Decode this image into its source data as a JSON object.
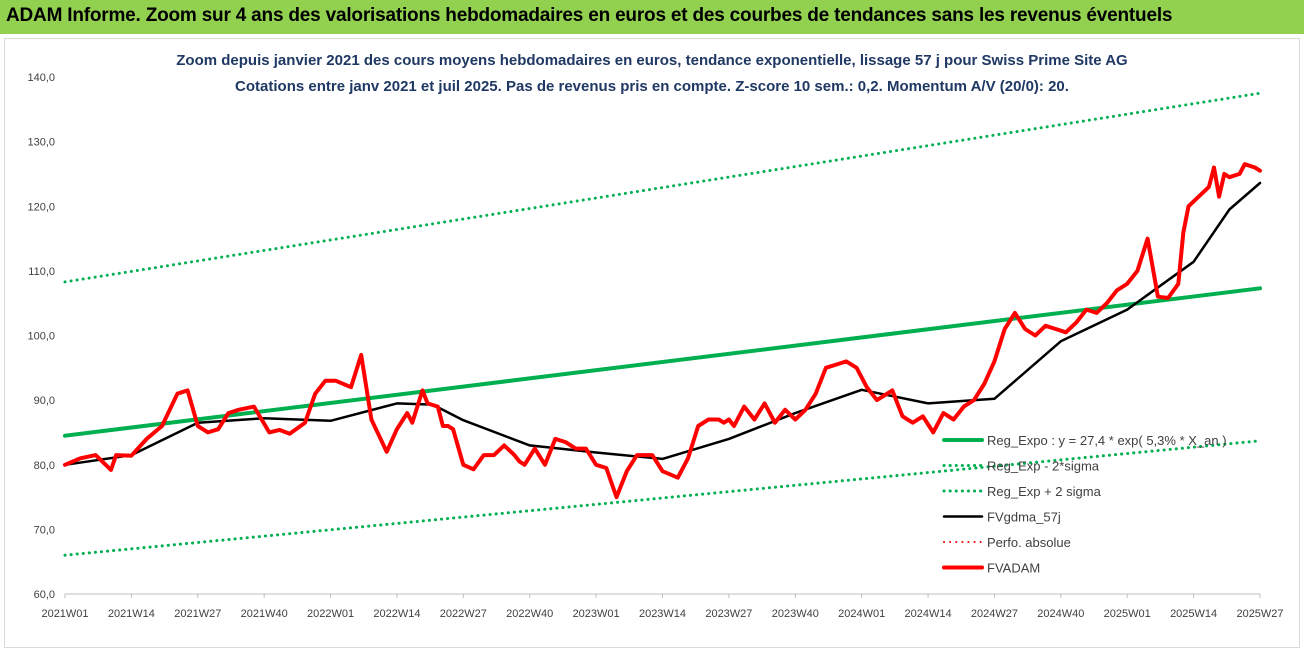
{
  "header": {
    "title": "ADAM Informe. Zoom sur 4 ans des valorisations hebdomadaires en euros et des courbes de tendances sans les revenus éventuels"
  },
  "chart_data": {
    "type": "line",
    "title": "Zoom depuis janvier 2021 des cours moyens hebdomadaires en euros, tendance exponentielle, lissage 57 j pour Swiss Prime Site AG",
    "subtitle": "Cotations entre janv 2021 et juil 2025. Pas de revenus pris en compte. Z-score 10 sem.: 0,2. Momentum A/V (20/0): 20.",
    "x_tick_labels": [
      "2021W01",
      "2021W14",
      "2021W27",
      "2021W40",
      "2022W01",
      "2022W14",
      "2022W27",
      "2022W40",
      "2023W01",
      "2023W14",
      "2023W27",
      "2023W40",
      "2024W01",
      "2024W14",
      "2024W27",
      "2024W40",
      "2025W01",
      "2025W14",
      "2025W27"
    ],
    "y_tick_labels": [
      "60,0",
      "70,0",
      "80,0",
      "90,0",
      "100,0",
      "110,0",
      "120,0",
      "130,0",
      "140,0"
    ],
    "ylim": [
      60,
      140
    ],
    "xlim": [
      0,
      234
    ],
    "grid": false,
    "legend_position": "bottom-right",
    "series": [
      {
        "name": "Reg_Expo : y = 27,4 * exp( 5,3% * X_an )",
        "color": "#00b050",
        "style": "solid",
        "width": 4,
        "x": [
          0,
          234
        ],
        "values": [
          84.5,
          107.3
        ]
      },
      {
        "name": "Reg_Exp - 2*sigma",
        "color": "#00b050",
        "style": "dotted",
        "width": 3,
        "x": [
          0,
          234
        ],
        "values": [
          66.0,
          83.7
        ]
      },
      {
        "name": "Reg_Exp + 2 sigma",
        "color": "#00b050",
        "style": "dotted",
        "width": 3,
        "x": [
          0,
          234
        ],
        "values": [
          108.3,
          137.5
        ]
      },
      {
        "name": "FVgdma_57j",
        "color": "#000000",
        "style": "solid",
        "width": 2.5,
        "x": [
          0,
          13,
          26,
          39,
          52,
          65,
          72,
          78,
          91,
          104,
          117,
          130,
          143,
          156,
          169,
          182,
          195,
          208,
          221,
          228,
          234
        ],
        "values": [
          80.0,
          81.5,
          86.5,
          87.2,
          86.8,
          89.5,
          89.3,
          86.9,
          83.0,
          81.9,
          80.9,
          84.0,
          88.0,
          91.6,
          89.5,
          90.2,
          99.1,
          104.0,
          111.4,
          119.5,
          123.6
        ]
      },
      {
        "name": "Perfo. absolue",
        "color": "#ff0000",
        "style": "dotted",
        "width": 2,
        "x": [],
        "values": []
      },
      {
        "name": "FVADAM",
        "color": "#ff0000",
        "style": "solid",
        "width": 4,
        "x": [
          0,
          3,
          6,
          9,
          10,
          13,
          16,
          19,
          22,
          24,
          26,
          28,
          30,
          32,
          34,
          37,
          40,
          42,
          44,
          47,
          49,
          51,
          53,
          56,
          58,
          60,
          63,
          65,
          67,
          68,
          70,
          71,
          73,
          74,
          75,
          76,
          78,
          80,
          82,
          84,
          86,
          88,
          89,
          90,
          92,
          94,
          96,
          98,
          100,
          102,
          104,
          106,
          108,
          110,
          112,
          115,
          117,
          120,
          122,
          124,
          126,
          128,
          129,
          130,
          131,
          133,
          135,
          137,
          139,
          141,
          143,
          145,
          147,
          149,
          151,
          153,
          155,
          157,
          159,
          162,
          164,
          166,
          168,
          170,
          172,
          174,
          176,
          178,
          180,
          182,
          184,
          186,
          188,
          190,
          192,
          194,
          196,
          198,
          200,
          202,
          204,
          206,
          208,
          210,
          212,
          214,
          216,
          218,
          219,
          220,
          222,
          224,
          225,
          226,
          227,
          228,
          230,
          231,
          233,
          234
        ],
        "values": [
          80.0,
          81.0,
          81.5,
          79.2,
          81.5,
          81.4,
          84.0,
          86.0,
          91.0,
          91.5,
          86.0,
          85.0,
          85.5,
          88.0,
          88.5,
          89.0,
          85.0,
          85.4,
          84.8,
          86.5,
          91.0,
          93.0,
          93.0,
          92.0,
          97.0,
          87.0,
          82.0,
          85.5,
          88.0,
          86.5,
          91.5,
          89.5,
          89.0,
          86.0,
          86.0,
          85.5,
          80.0,
          79.3,
          81.5,
          81.5,
          83.0,
          81.5,
          80.5,
          80.0,
          82.5,
          80.0,
          84.0,
          83.5,
          82.5,
          82.5,
          80.0,
          79.5,
          75.0,
          79.0,
          81.5,
          81.5,
          79.0,
          78.0,
          81.0,
          86.0,
          87.0,
          87.0,
          86.5,
          87.0,
          86.0,
          89.0,
          87.0,
          89.5,
          86.5,
          88.5,
          87.0,
          88.5,
          91.0,
          95.0,
          95.5,
          96.0,
          95.0,
          92.0,
          90.0,
          91.5,
          87.5,
          86.5,
          87.5,
          85.0,
          88.0,
          87.0,
          89.0,
          90.0,
          92.5,
          96.0,
          101.0,
          103.5,
          101.0,
          100.0,
          101.5,
          101.0,
          100.5,
          102.0,
          104.0,
          103.5,
          105.0,
          107.0,
          108.0,
          110.0,
          115.0,
          106.0,
          105.8,
          108.0,
          116.0,
          120.0,
          121.5,
          123.0,
          126.0,
          121.5,
          125.0,
          124.5,
          125.0,
          126.5,
          126.0,
          125.5
        ]
      }
    ]
  }
}
